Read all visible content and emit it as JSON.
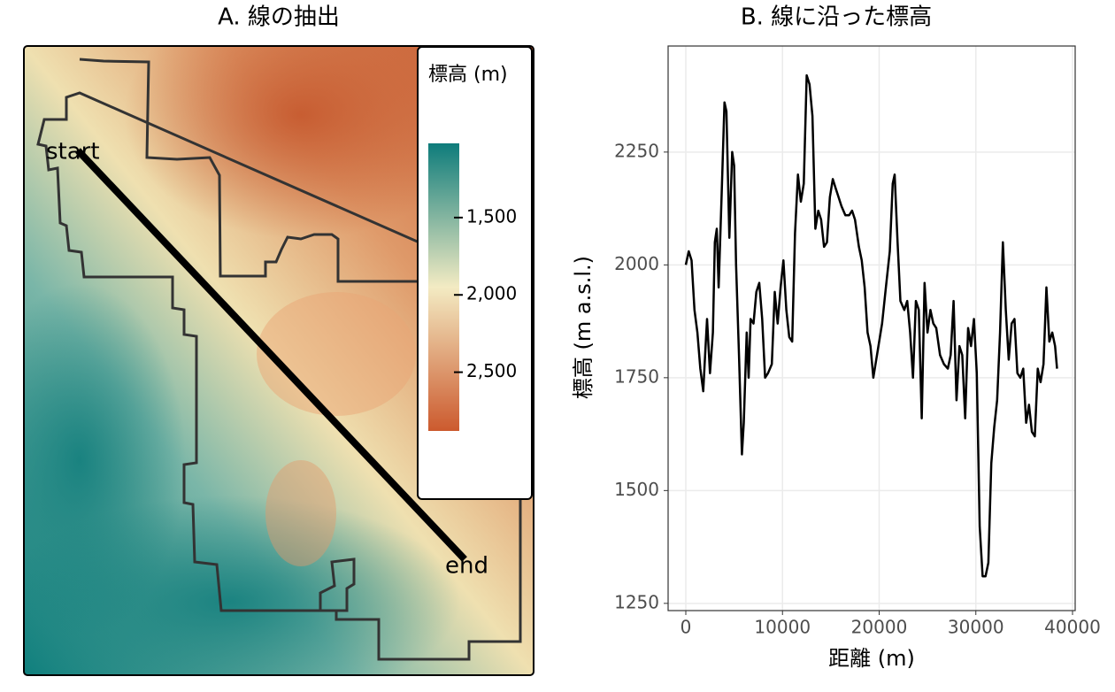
{
  "chart_data": [
    {
      "type": "map",
      "title": "A. 線の抽出",
      "legend_title": "標高 (m)",
      "colorbar": {
        "colors": [
          "#0e7c7b",
          "#f3ebc3",
          "#cc5a2e"
        ],
        "lim": [
          1020,
          2880
        ],
        "ticks": [
          {
            "value": 1500,
            "label": "1,500"
          },
          {
            "value": 2000,
            "label": "2,000"
          },
          {
            "value": 2500,
            "label": "2,500"
          }
        ]
      },
      "annotations": [
        "start",
        "end"
      ]
    },
    {
      "type": "line",
      "title": "B. 線に沿った標高",
      "xlabel": "距離 (m)",
      "ylabel": "標高 (m a.s.l.)",
      "color": "#000000",
      "grid": true,
      "xlim": [
        -1830,
        40275
      ],
      "ylim": [
        1234,
        2485
      ],
      "xticks": [
        0,
        10000,
        20000,
        30000,
        40000
      ],
      "yticks": [
        1250,
        1500,
        1750,
        2000,
        2250
      ],
      "x": [
        0,
        300,
        600,
        900,
        1200,
        1500,
        1800,
        2000,
        2200,
        2500,
        2800,
        3000,
        3200,
        3400,
        3700,
        4000,
        4200,
        4500,
        4800,
        5000,
        5200,
        5500,
        5800,
        6000,
        6300,
        6500,
        6700,
        7000,
        7300,
        7600,
        7900,
        8200,
        8500,
        8900,
        9200,
        9500,
        9800,
        10100,
        10400,
        10700,
        11000,
        11300,
        11600,
        11900,
        12200,
        12500,
        12800,
        13100,
        13400,
        13700,
        14000,
        14300,
        14600,
        14900,
        15200,
        15500,
        15800,
        16100,
        16500,
        16900,
        17200,
        17500,
        17900,
        18200,
        18500,
        18800,
        19100,
        19400,
        19700,
        20000,
        20300,
        20700,
        21100,
        21400,
        21600,
        21900,
        22200,
        22600,
        22900,
        23200,
        23500,
        23800,
        24100,
        24400,
        24700,
        25000,
        25300,
        25600,
        25900,
        26300,
        26700,
        27100,
        27400,
        27700,
        28000,
        28300,
        28600,
        28900,
        29200,
        29500,
        29800,
        30100,
        30400,
        30700,
        31000,
        31300,
        31600,
        31900,
        32200,
        32500,
        32800,
        33100,
        33400,
        33700,
        34000,
        34300,
        34600,
        34900,
        35200,
        35500,
        35800,
        36100,
        36400,
        36700,
        37000,
        37300,
        37600,
        37900,
        38200,
        38400
      ],
      "values": [
        2000,
        2030,
        2010,
        1900,
        1850,
        1770,
        1720,
        1800,
        1880,
        1760,
        1850,
        2050,
        2080,
        1950,
        2150,
        2360,
        2340,
        2060,
        2250,
        2220,
        2000,
        1800,
        1580,
        1650,
        1850,
        1750,
        1880,
        1870,
        1940,
        1960,
        1880,
        1750,
        1760,
        1780,
        1940,
        1870,
        1950,
        2010,
        1900,
        1840,
        1830,
        2070,
        2200,
        2140,
        2180,
        2420,
        2400,
        2330,
        2080,
        2120,
        2100,
        2040,
        2050,
        2150,
        2190,
        2170,
        2150,
        2130,
        2110,
        2110,
        2120,
        2100,
        2040,
        2010,
        1950,
        1850,
        1820,
        1750,
        1790,
        1830,
        1870,
        1950,
        2030,
        2180,
        2200,
        2050,
        1920,
        1900,
        1920,
        1850,
        1750,
        1920,
        1900,
        1660,
        1960,
        1850,
        1900,
        1870,
        1860,
        1800,
        1780,
        1770,
        1800,
        1920,
        1700,
        1820,
        1800,
        1660,
        1860,
        1820,
        1880,
        1760,
        1420,
        1310,
        1310,
        1340,
        1560,
        1640,
        1700,
        1850,
        2050,
        1900,
        1790,
        1870,
        1880,
        1760,
        1750,
        1770,
        1650,
        1690,
        1630,
        1620,
        1770,
        1740,
        1780,
        1950,
        1830,
        1850,
        1820,
        1770
      ]
    }
  ]
}
